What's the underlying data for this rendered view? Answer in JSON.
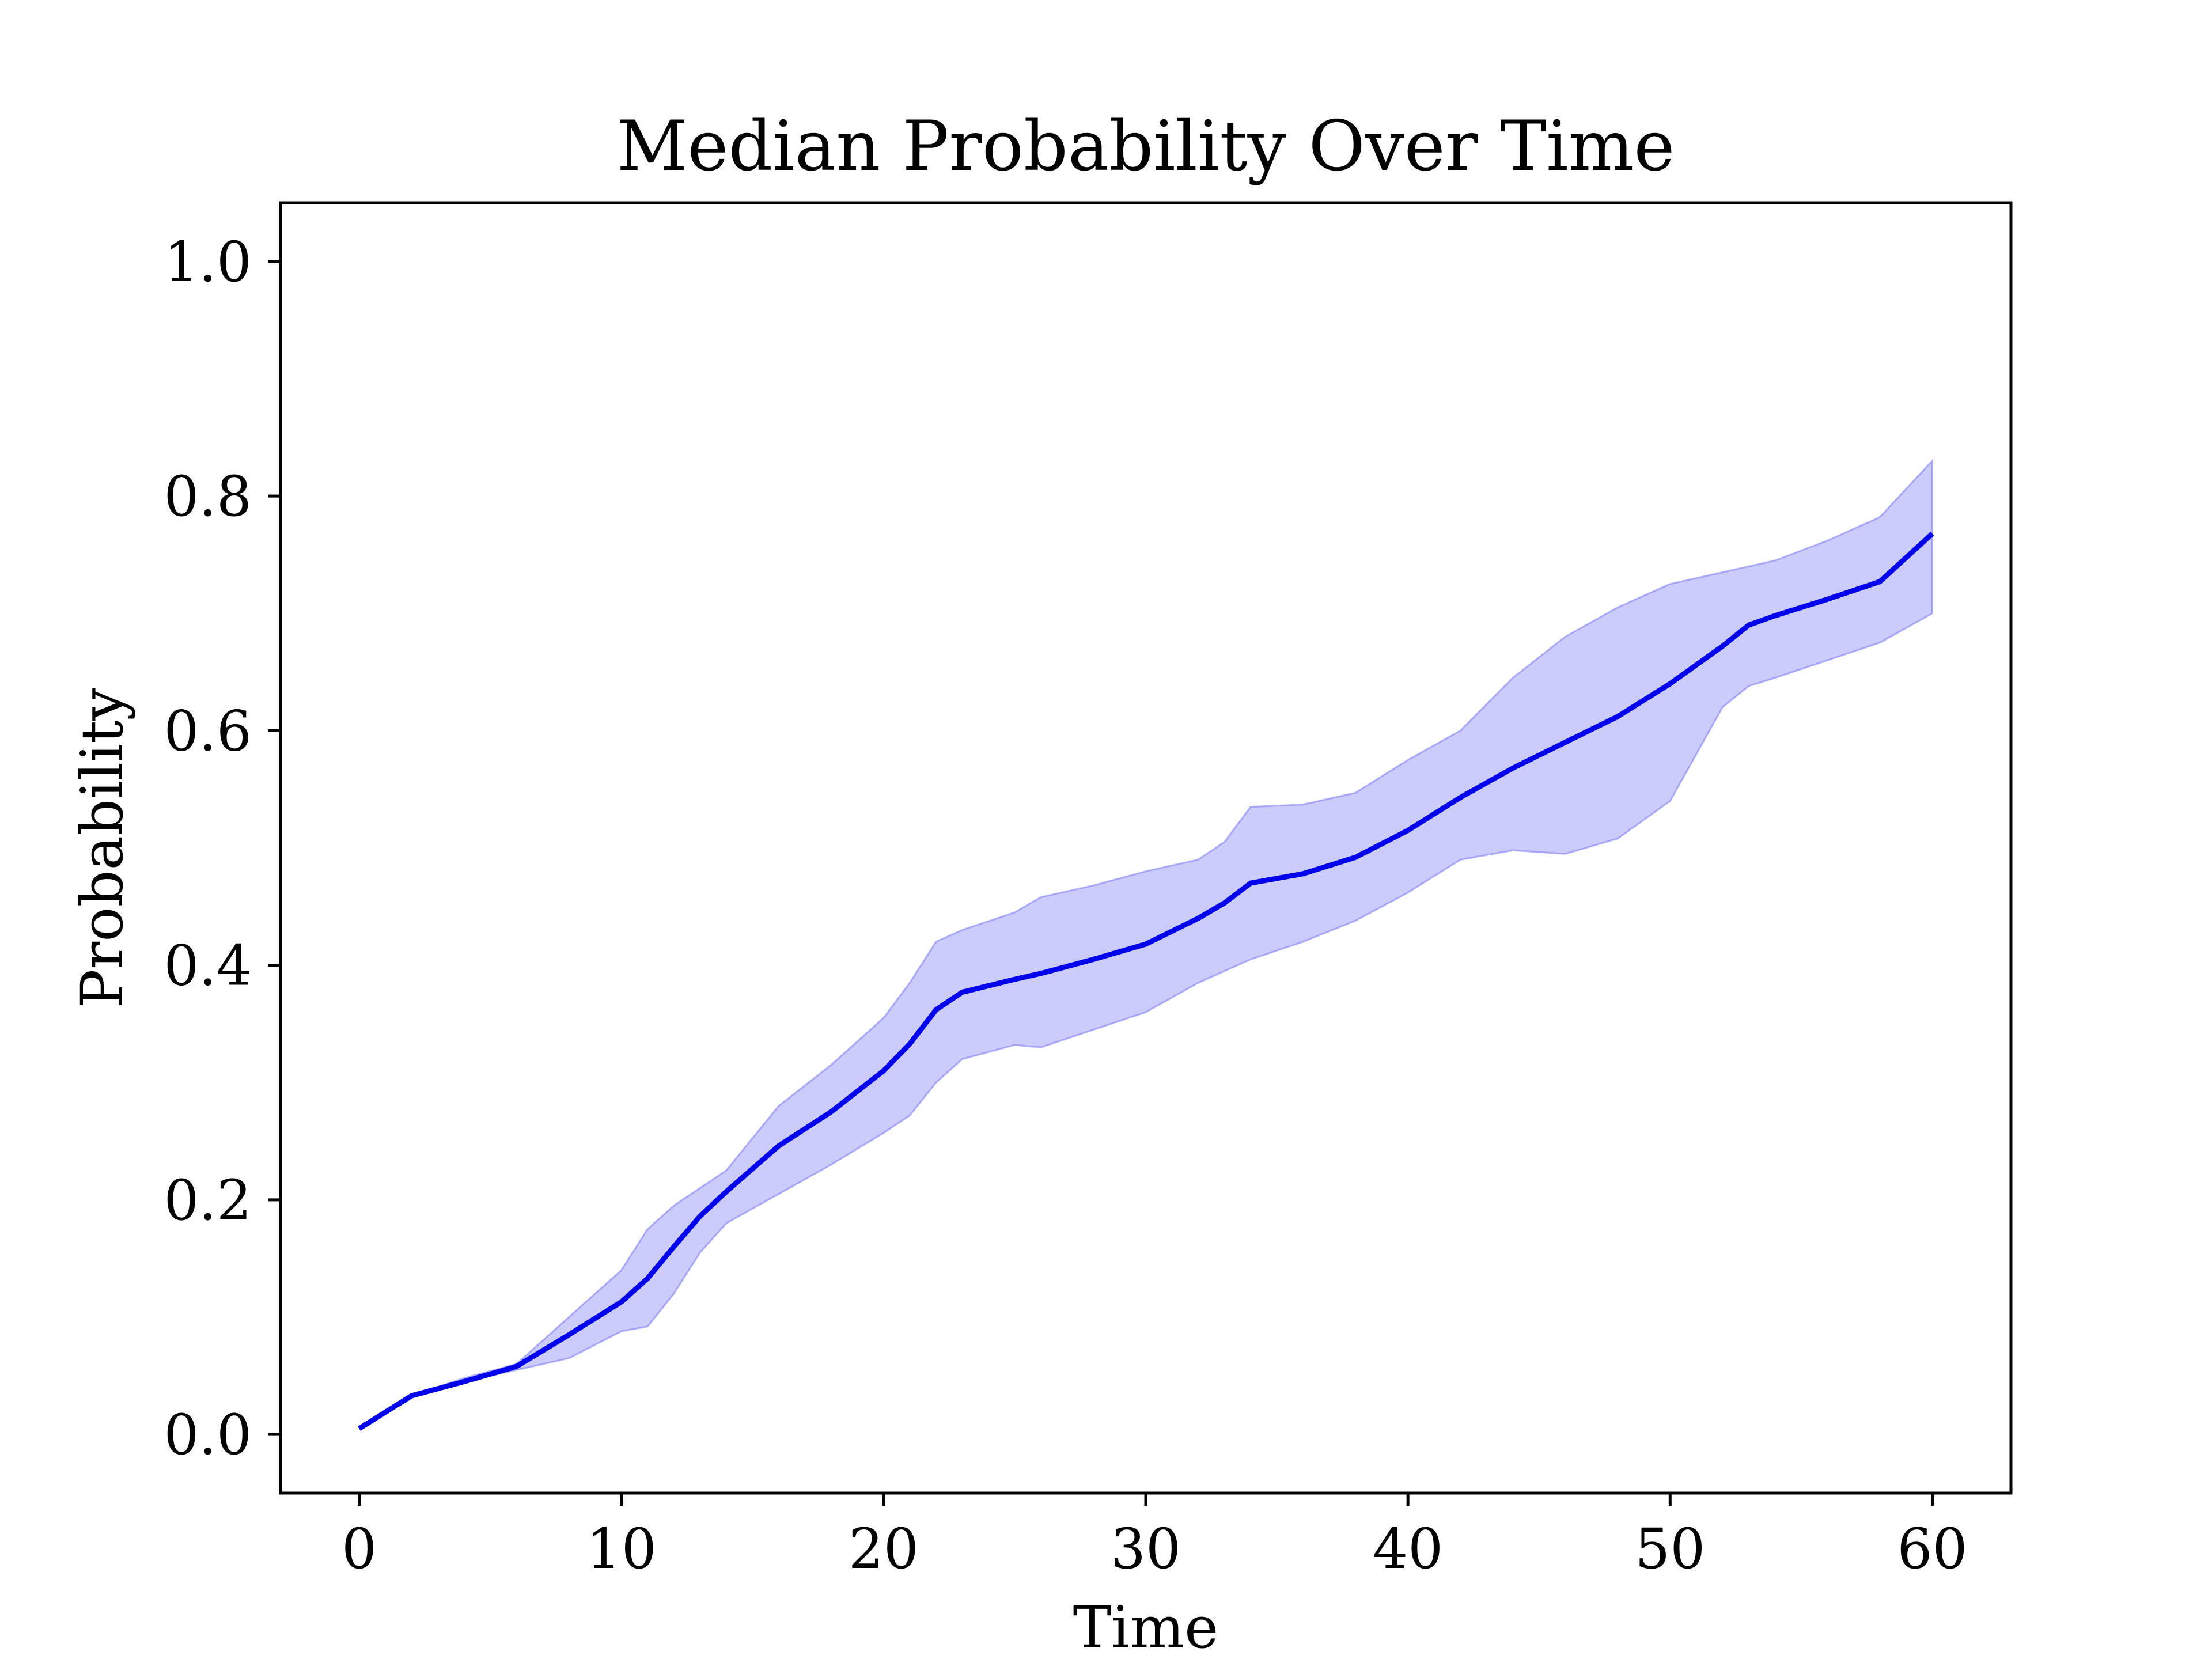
{
  "chart_data": {
    "type": "line",
    "title": "Median Probability Over Time",
    "xlabel": "Time",
    "ylabel": "Probability",
    "xlim": [
      -3,
      63
    ],
    "ylim": [
      -0.05,
      1.05
    ],
    "grid": false,
    "legend": "none",
    "x_ticks": [
      {
        "value": 0,
        "label": "0"
      },
      {
        "value": 10,
        "label": "10"
      },
      {
        "value": 20,
        "label": "20"
      },
      {
        "value": 30,
        "label": "30"
      },
      {
        "value": 40,
        "label": "40"
      },
      {
        "value": 50,
        "label": "50"
      },
      {
        "value": 60,
        "label": "60"
      }
    ],
    "y_ticks": [
      {
        "value": 0.0,
        "label": "0.0"
      },
      {
        "value": 0.2,
        "label": "0.2"
      },
      {
        "value": 0.4,
        "label": "0.4"
      },
      {
        "value": 0.6,
        "label": "0.6"
      },
      {
        "value": 0.8,
        "label": "0.8"
      },
      {
        "value": 1.0,
        "label": "1.0"
      }
    ],
    "colors": {
      "line": "#0000ee",
      "band": "#7f7ff7",
      "band_opacity": 0.4
    },
    "x": [
      0,
      2,
      4,
      6,
      8,
      10,
      11,
      12,
      13,
      14,
      16,
      18,
      20,
      21,
      22,
      23,
      25,
      26,
      28,
      30,
      32,
      33,
      34,
      36,
      38,
      40,
      42,
      44,
      46,
      48,
      50,
      52,
      53,
      54,
      56,
      58,
      60
    ],
    "series": [
      {
        "values": [
          0.005,
          0.033,
          0.045,
          0.058,
          0.085,
          0.113,
          0.133,
          0.16,
          0.186,
          0.207,
          0.246,
          0.275,
          0.31,
          0.333,
          0.362,
          0.377,
          0.388,
          0.393,
          0.405,
          0.418,
          0.44,
          0.453,
          0.47,
          0.478,
          0.492,
          0.515,
          0.543,
          0.568,
          0.59,
          0.612,
          0.64,
          0.672,
          0.69,
          0.698,
          0.712,
          0.727,
          0.768
        ],
        "lower": [
          0.005,
          0.033,
          0.045,
          0.055,
          0.065,
          0.088,
          0.092,
          0.12,
          0.155,
          0.18,
          0.205,
          0.23,
          0.257,
          0.272,
          0.3,
          0.32,
          0.332,
          0.33,
          0.345,
          0.36,
          0.385,
          0.395,
          0.405,
          0.42,
          0.438,
          0.462,
          0.49,
          0.498,
          0.495,
          0.508,
          0.54,
          0.62,
          0.638,
          0.645,
          0.66,
          0.675,
          0.7
        ],
        "upper": [
          0.005,
          0.033,
          0.048,
          0.06,
          0.1,
          0.14,
          0.175,
          0.195,
          0.21,
          0.225,
          0.28,
          0.315,
          0.355,
          0.385,
          0.42,
          0.43,
          0.445,
          0.458,
          0.468,
          0.48,
          0.49,
          0.505,
          0.535,
          0.537,
          0.547,
          0.575,
          0.6,
          0.645,
          0.68,
          0.705,
          0.725,
          0.735,
          0.74,
          0.745,
          0.762,
          0.782,
          0.83
        ]
      }
    ]
  }
}
